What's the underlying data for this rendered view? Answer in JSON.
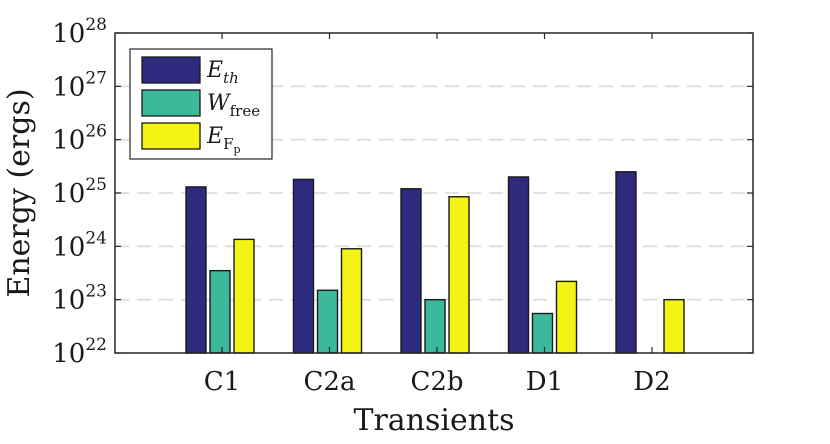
{
  "chart_data": {
    "type": "bar",
    "yscale": "log",
    "title": "",
    "xlabel": "Transients",
    "ylabel": "Energy (ergs)",
    "ylim": [
      1e+22,
      1e+28
    ],
    "categories": [
      "C1",
      "C2a",
      "C2b",
      "D1",
      "D2"
    ],
    "y_ticks": [
      {
        "base": "10",
        "exp": "22"
      },
      {
        "base": "10",
        "exp": "23"
      },
      {
        "base": "10",
        "exp": "24"
      },
      {
        "base": "10",
        "exp": "25"
      },
      {
        "base": "10",
        "exp": "26"
      },
      {
        "base": "10",
        "exp": "27"
      },
      {
        "base": "10",
        "exp": "28"
      }
    ],
    "grid": "horizontal-dashed",
    "legend_position": "top-left",
    "series": [
      {
        "name": "E_th",
        "label_main": "E",
        "label_sub": "th",
        "color": "#2e2a7e",
        "values": [
          1.3e+25,
          1.8e+25,
          1.2e+25,
          2e+25,
          2.5e+25
        ]
      },
      {
        "name": "W_free",
        "label_main": "W",
        "label_sub": "free",
        "color": "#3cb89a",
        "values": [
          3.5e+23,
          1.5e+23,
          1e+23,
          5.5e+22,
          null
        ]
      },
      {
        "name": "E_Fp",
        "label_main": "E",
        "label_sub": "Fp",
        "color": "#f4f414",
        "values": [
          1.35e+24,
          9e+23,
          8.5e+24,
          2.2e+23,
          1e+23
        ]
      }
    ]
  }
}
